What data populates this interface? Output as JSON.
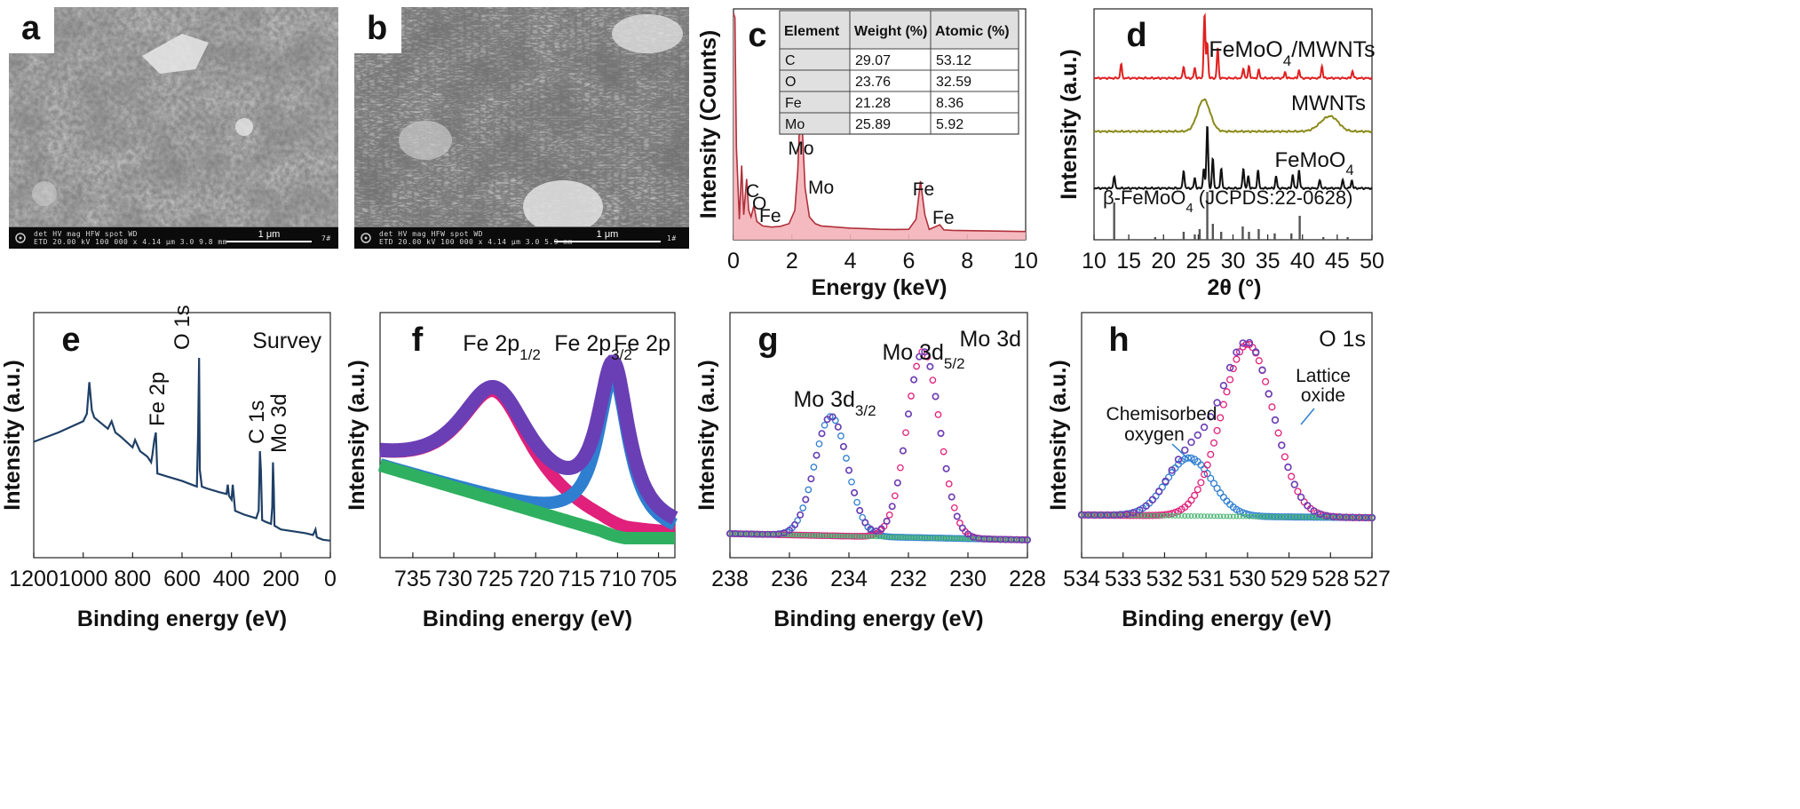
{
  "panels": {
    "a": {
      "label": "a",
      "meta": "det   HV   mag   HFW   spot   WD",
      "meta2": "ETD  20.00 kV  100 000 x  4.14 μm  3.0  9.8 mm",
      "scale": "1 μm",
      "tag": "7#"
    },
    "b": {
      "label": "b",
      "meta": "det   HV   mag   HFW   spot   WD",
      "meta2": "ETD  20.00 kV  100 000 x  4.14 μm  3.0  5.9 mm",
      "scale": "1 μm",
      "tag": "1#"
    },
    "c": {
      "label": "c",
      "xlabel": "Energy (keV)",
      "ylabel": "Intensity (Counts)",
      "peaks": [
        "C",
        "O",
        "Fe",
        "Mo",
        "Mo",
        "Fe",
        "Fe"
      ],
      "table": {
        "headers": [
          "Element",
          "Weight (%)",
          "Atomic (%)"
        ],
        "rows": [
          [
            "C",
            "29.07",
            "53.12"
          ],
          [
            "O",
            "23.76",
            "32.59"
          ],
          [
            "Fe",
            "21.28",
            "8.36"
          ],
          [
            "Mo",
            "25.89",
            "5.92"
          ]
        ]
      }
    },
    "d": {
      "label": "d",
      "xlabel": "2θ (°)",
      "ylabel": "Intensity (a.u.)",
      "series_labels": [
        "FeMoO4/MWNTs",
        "MWNTs",
        "FeMoO4",
        "β-FeMoO4 (JCPDS:22-0628)"
      ]
    },
    "e": {
      "label": "e",
      "title": "Survey",
      "xlabel": "Binding energy (eV)",
      "ylabel": "Intensity (a.u.)",
      "peaks": [
        "Fe 2p",
        "O 1s",
        "C 1s",
        "Mo 3d"
      ]
    },
    "f": {
      "label": "f",
      "title": "Fe 2p",
      "xlabel": "Binding energy (eV)",
      "ylabel": "Intensity (a.u.)",
      "peaks": [
        "Fe 2p1/2",
        "Fe 2p3/2"
      ]
    },
    "g": {
      "label": "g",
      "title": "Mo 3d",
      "xlabel": "Binding energy (eV)",
      "ylabel": "Intensity (a.u.)",
      "peaks": [
        "Mo 3d3/2",
        "Mo 3d5/2"
      ]
    },
    "h": {
      "label": "h",
      "title": "O 1s",
      "xlabel": "Binding energy (eV)",
      "ylabel": "Intensity (a.u.)",
      "annotations": [
        "Lattice oxide",
        "Chemisorbed oxygen"
      ]
    }
  },
  "chart_data": [
    {
      "panel": "c",
      "type": "line",
      "title": "",
      "xlabel": "Energy (keV)",
      "ylabel": "Intensity (Counts)",
      "xlim": [
        0,
        10
      ],
      "xticks": [
        0,
        2,
        4,
        6,
        8,
        10
      ],
      "series": [
        {
          "name": "EDS spectrum",
          "color": "#b0303a",
          "fill": "#f4b3b8",
          "x": [
            0,
            0.05,
            0.1,
            0.2,
            0.28,
            0.35,
            0.45,
            0.52,
            0.6,
            0.7,
            0.8,
            1.0,
            1.3,
            1.6,
            1.9,
            2.1,
            2.2,
            2.29,
            2.35,
            2.45,
            2.6,
            2.8,
            3.0,
            3.5,
            4.0,
            4.5,
            5.0,
            5.5,
            6.0,
            6.25,
            6.4,
            6.55,
            6.7,
            7.06,
            7.2,
            7.5,
            8.0,
            9.0,
            10.0
          ],
          "y": [
            100,
            98,
            40,
            8,
            32,
            10,
            26,
            12,
            9,
            14,
            7,
            5,
            4.5,
            4.8,
            6,
            12,
            30,
            60,
            50,
            22,
            9,
            6,
            5,
            4.5,
            4,
            3.8,
            3.5,
            3.4,
            3.5,
            8,
            25,
            10,
            3.4,
            5.5,
            3.2,
            3.0,
            2.9,
            2.7,
            2.5
          ]
        }
      ]
    },
    {
      "panel": "d",
      "type": "line",
      "title": "",
      "xlabel": "2θ (°)",
      "ylabel": "Intensity (a.u.)",
      "xlim": [
        10,
        50
      ],
      "xticks": [
        10,
        15,
        20,
        25,
        30,
        35,
        40,
        45,
        50
      ],
      "series": [
        {
          "name": "FeMoO4/MWNTs",
          "color": "#e02020",
          "offset": 3,
          "peaks": [
            [
              13.9,
              0.35
            ],
            [
              22.9,
              0.3
            ],
            [
              24.5,
              0.25
            ],
            [
              25.9,
              1.6
            ],
            [
              26.3,
              0.9
            ],
            [
              27.8,
              0.75
            ],
            [
              31.5,
              0.25
            ],
            [
              32.3,
              0.3
            ],
            [
              33.7,
              0.2
            ],
            [
              37.5,
              0.15
            ],
            [
              39.5,
              0.2
            ],
            [
              42.8,
              0.3
            ],
            [
              47.2,
              0.18
            ]
          ]
        },
        {
          "name": "MWNTs",
          "color": "#8a8a1a",
          "offset": 2,
          "broad": [
            [
              25.8,
              0.8,
              0.9
            ],
            [
              43.4,
              0.25,
              1.2
            ],
            [
              44.5,
              0.18,
              1.0
            ]
          ]
        },
        {
          "name": "FeMoO4",
          "color": "#101010",
          "offset": 1,
          "peaks": [
            [
              12.9,
              0.3
            ],
            [
              22.9,
              0.45
            ],
            [
              24.5,
              0.25
            ],
            [
              25.8,
              0.5
            ],
            [
              26.3,
              1.6
            ],
            [
              27.1,
              0.75
            ],
            [
              28.3,
              0.5
            ],
            [
              31.5,
              0.5
            ],
            [
              32.2,
              0.3
            ],
            [
              33.6,
              0.45
            ],
            [
              36.2,
              0.3
            ],
            [
              38.6,
              0.35
            ],
            [
              39.5,
              0.45
            ],
            [
              42.5,
              0.2
            ],
            [
              45.8,
              0.2
            ],
            [
              47.1,
              0.2
            ]
          ]
        },
        {
          "name": "β-FeMoO4 (JCPDS:22-0628)",
          "color": "#555555",
          "type": "sticks",
          "sticks": [
            [
              12.9,
              0.7
            ],
            [
              18.8,
              0.05
            ],
            [
              22.9,
              0.15
            ],
            [
              24.5,
              0.1
            ],
            [
              25.2,
              0.2
            ],
            [
              26.3,
              0.9
            ],
            [
              27.1,
              0.3
            ],
            [
              28.3,
              0.15
            ],
            [
              31.4,
              0.25
            ],
            [
              32.3,
              0.15
            ],
            [
              33.7,
              0.2
            ],
            [
              36.0,
              0.12
            ],
            [
              38.4,
              0.12
            ],
            [
              39.6,
              0.45
            ],
            [
              43.0,
              0.05
            ],
            [
              46.5,
              0.05
            ]
          ]
        }
      ]
    },
    {
      "panel": "e",
      "type": "line",
      "title": "Survey",
      "xlabel": "Binding energy (eV)",
      "ylabel": "Intensity (a.u.)",
      "xlim": [
        1200,
        0
      ],
      "xticks": [
        1200,
        1000,
        800,
        600,
        400,
        200,
        0
      ],
      "series": [
        {
          "name": "Survey",
          "color": "#1f3f66",
          "x": [
            1200,
            1100,
            1000,
            985,
            975,
            965,
            955,
            900,
            885,
            870,
            850,
            800,
            790,
            770,
            740,
            725,
            720,
            712,
            706,
            700,
            650,
            600,
            560,
            540,
            535,
            531,
            528,
            520,
            500,
            450,
            420,
            415,
            410,
            400,
            395,
            385,
            350,
            300,
            290,
            285,
            281,
            276,
            260,
            240,
            235,
            232,
            229,
            226,
            200,
            150,
            100,
            70,
            60,
            55,
            50,
            40,
            30,
            0
          ],
          "y": [
            55,
            60,
            66,
            70,
            87,
            72,
            68,
            62,
            66,
            60,
            58,
            52,
            56,
            50,
            47,
            44,
            48,
            56,
            60,
            38,
            36,
            34,
            32,
            31,
            60,
            100,
            40,
            31,
            30,
            28,
            27,
            32,
            26,
            24,
            32,
            18,
            16,
            14,
            18,
            50,
            40,
            13,
            12,
            11,
            20,
            44,
            30,
            10,
            8,
            7,
            6,
            5,
            8,
            4,
            3.5,
            3,
            2.5,
            2
          ]
        }
      ]
    },
    {
      "panel": "f",
      "type": "line",
      "title": "Fe 2p",
      "xlabel": "Binding energy (eV)",
      "ylabel": "Intensity (a.u.)",
      "xlim": [
        739,
        703
      ],
      "xticks": [
        735,
        730,
        725,
        720,
        715,
        710,
        705
      ],
      "series": [
        {
          "name": "Fe 2p envelope",
          "color": "#6a3fb5",
          "role": "envelope"
        },
        {
          "name": "Fe 2p1/2 fit",
          "color": "#e0207a",
          "center": 725.0,
          "height": 0.52,
          "width": 5.5
        },
        {
          "name": "Fe 2p3/2 fit",
          "color": "#2f7fd0",
          "center": 710.5,
          "height": 0.77,
          "width": 2.3
        },
        {
          "name": "Background",
          "color": "#2fb060",
          "role": "background"
        }
      ]
    },
    {
      "panel": "g",
      "type": "line",
      "title": "Mo 3d",
      "xlabel": "Binding energy (eV)",
      "ylabel": "Intensity (a.u.)",
      "xlim": [
        238,
        228
      ],
      "xticks": [
        238,
        236,
        234,
        232,
        230,
        228
      ],
      "series": [
        {
          "name": "Mo 3d envelope",
          "color": "#6a3fb5",
          "role": "envelope"
        },
        {
          "name": "Mo 3d3/2 fit",
          "color": "#2f7fd0",
          "center": 234.6,
          "height": 0.57,
          "width": 0.55
        },
        {
          "name": "Mo 3d5/2 fit",
          "color": "#e0207a",
          "center": 231.5,
          "height": 0.89,
          "width": 0.55
        },
        {
          "name": "Background",
          "color": "#4fb878",
          "role": "background"
        }
      ]
    },
    {
      "panel": "h",
      "type": "line",
      "title": "O 1s",
      "xlabel": "Binding energy (eV)",
      "ylabel": "Intensity (a.u.)",
      "xlim": [
        534,
        527
      ],
      "xticks": [
        534,
        533,
        532,
        531,
        530,
        529,
        528,
        527
      ],
      "series": [
        {
          "name": "O 1s envelope",
          "color": "#6a3fb5",
          "role": "envelope"
        },
        {
          "name": "Chemisorbed oxygen",
          "color": "#2f7fd0",
          "center": 531.4,
          "height": 0.31,
          "width": 0.55
        },
        {
          "name": "Lattice oxide",
          "color": "#e0207a",
          "center": 530.0,
          "height": 0.92,
          "width": 0.62
        },
        {
          "name": "Background",
          "color": "#4fb878",
          "role": "background"
        }
      ]
    }
  ]
}
